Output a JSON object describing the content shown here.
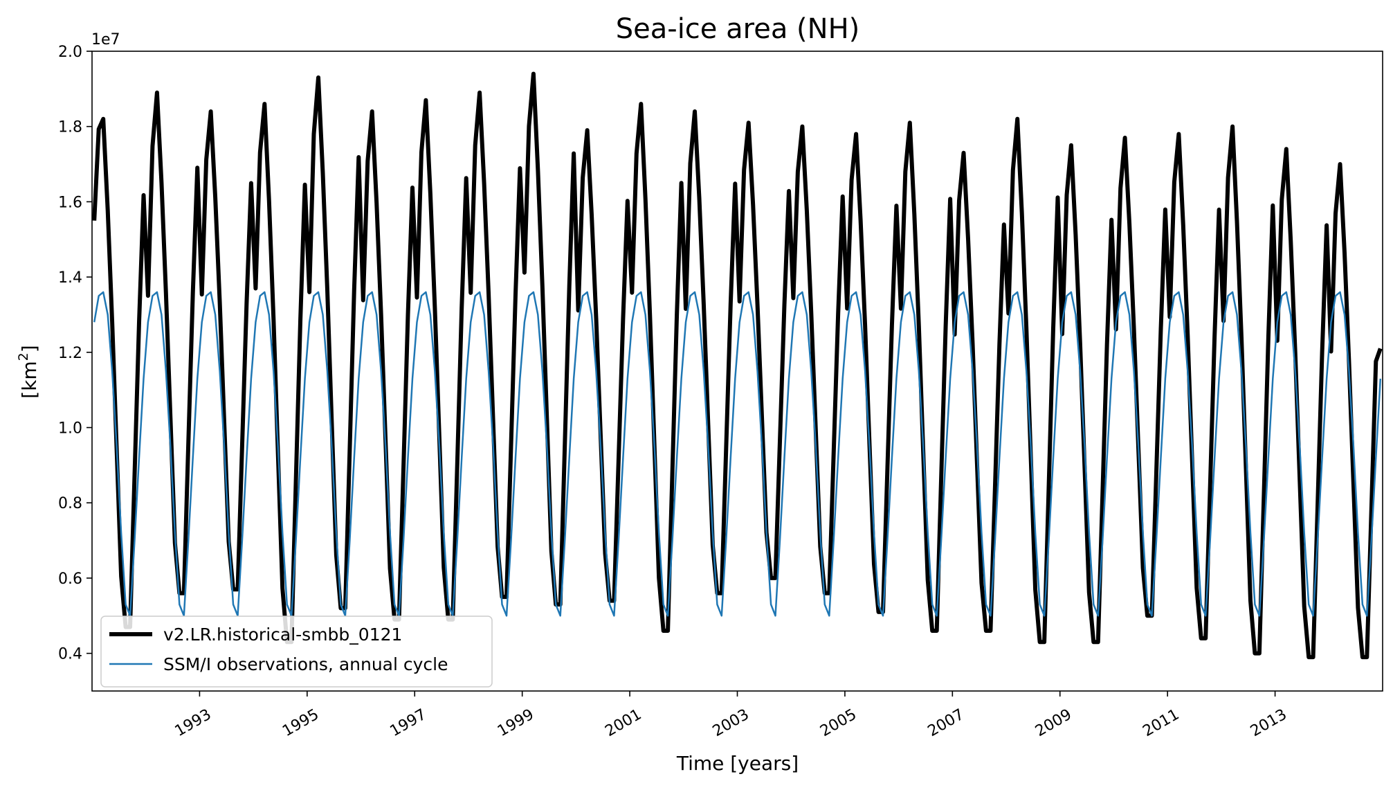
{
  "chart_data": {
    "type": "line",
    "title": "Sea-ice area (NH)",
    "xlabel": "Time [years]",
    "ylabel": "[km",
    "ylabel_superscript": "2",
    "ylabel_close": "]",
    "offset_label": "1e7",
    "xlim": [
      1991.0,
      2015.0
    ],
    "ylim": [
      0.3,
      2.0
    ],
    "xticks": [
      1993,
      1995,
      1997,
      1999,
      2001,
      2003,
      2005,
      2007,
      2009,
      2011,
      2013
    ],
    "xtick_labels": [
      "1993",
      "1995",
      "1997",
      "1999",
      "2001",
      "2003",
      "2005",
      "2007",
      "2009",
      "2011",
      "2013"
    ],
    "yticks": [
      0.4,
      0.6,
      0.8,
      1.0,
      1.2,
      1.4,
      1.6,
      1.8,
      2.0
    ],
    "ytick_labels": [
      "0.4",
      "0.6",
      "0.8",
      "1.0",
      "1.2",
      "1.4",
      "1.6",
      "1.8",
      "2.0"
    ],
    "legend_position": "lower-left",
    "series": [
      {
        "name": "v2.LR.historical-smbb_0121",
        "color": "#000000",
        "annual_max": [
          1.82,
          1.89,
          1.84,
          1.86,
          1.93,
          1.84,
          1.87,
          1.89,
          1.94,
          1.79,
          1.86,
          1.84,
          1.81,
          1.8,
          1.78,
          1.81,
          1.73,
          1.82,
          1.75,
          1.77,
          1.78,
          1.8,
          1.74,
          1.7
        ],
        "annual_min": [
          0.47,
          0.56,
          0.57,
          0.43,
          0.52,
          0.49,
          0.49,
          0.55,
          0.53,
          0.54,
          0.46,
          0.56,
          0.6,
          0.56,
          0.51,
          0.46,
          0.46,
          0.43,
          0.43,
          0.5,
          0.44,
          0.4,
          0.39,
          0.39
        ],
        "end_value": 1.21,
        "start_value": 1.55
      },
      {
        "name": "SSM/I observations, annual cycle",
        "color": "#1f77b4",
        "annual_cycle": [
          1.28,
          1.35,
          1.36,
          1.3,
          1.15,
          0.95,
          0.72,
          0.53,
          0.5,
          0.7,
          0.92,
          1.13
        ]
      }
    ]
  }
}
